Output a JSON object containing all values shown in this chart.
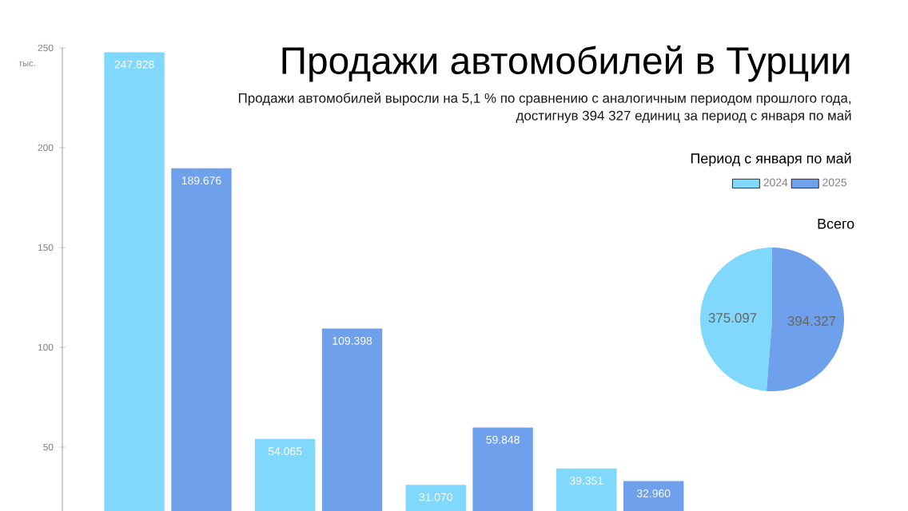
{
  "chart_data": [
    {
      "type": "bar",
      "title": "Продажи автомобилей в Турции",
      "subtitle": "Продажи автомобилей выросли на 5,1 % по сравнению с аналогичным периодом прошлого года, достигнув 394 327 единиц за период с января по май",
      "ylabel": "тыс.",
      "legend_title": "Период с января по май",
      "categories": [
        null,
        null,
        null,
        null
      ],
      "series": [
        {
          "name": "2024",
          "color": "#80d8fc",
          "values": [
            247.828,
            54.065,
            31.07,
            39.351
          ],
          "value_labels": [
            "247.828",
            "54.065",
            "31.070",
            "39.351"
          ]
        },
        {
          "name": "2025",
          "color": "#6fa0eb",
          "values": [
            189.676,
            109.398,
            59.848,
            32.96
          ],
          "value_labels": [
            "189.676",
            "109.398",
            "59.848",
            "32.960"
          ]
        }
      ],
      "ylim": [
        18,
        250
      ],
      "yticks": [
        50,
        100,
        150,
        200,
        250
      ],
      "legend": "top right",
      "grid": false
    },
    {
      "type": "pie",
      "title": "Всего",
      "categories": [
        null,
        null
      ],
      "values": [
        375.097,
        394.327
      ],
      "colors": [
        "#80d8fc",
        "#6fa0eb"
      ],
      "value_labels": [
        "375.097",
        "394.327"
      ]
    }
  ]
}
